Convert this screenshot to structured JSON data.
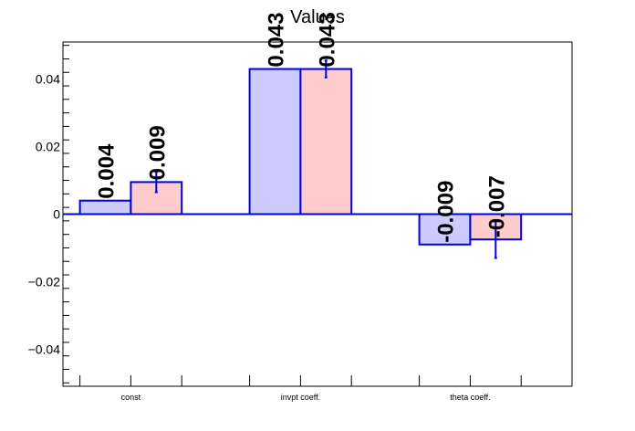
{
  "chart_data": {
    "type": "bar",
    "title": "Values",
    "xlabel": "",
    "ylabel": "",
    "categories": [
      "const",
      "invpt coeff.",
      "theta coeff."
    ],
    "ylim": [
      -0.051,
      0.051
    ],
    "yticks": [
      -0.04,
      -0.02,
      0,
      0.02,
      0.04
    ],
    "ytick_labels": [
      "−0.04",
      "−0.02",
      "0",
      "0.02",
      "0.04"
    ],
    "series": [
      {
        "values": [
          0.004,
          0.043,
          -0.009
        ],
        "errors": [
          0,
          0,
          0
        ],
        "labels": [
          "0.004",
          "0.043",
          "-0.009"
        ],
        "fill": "#ccccff",
        "stroke": "#0000dd"
      },
      {
        "values": [
          0.0095,
          0.043,
          -0.0075
        ],
        "errors": [
          0.003,
          0.0025,
          0.0055
        ],
        "labels": [
          "0.009",
          "0.043",
          "-0.007"
        ],
        "fill": "#ffcccc",
        "stroke": "#0000dd"
      }
    ],
    "grid": false,
    "legend": "none"
  }
}
